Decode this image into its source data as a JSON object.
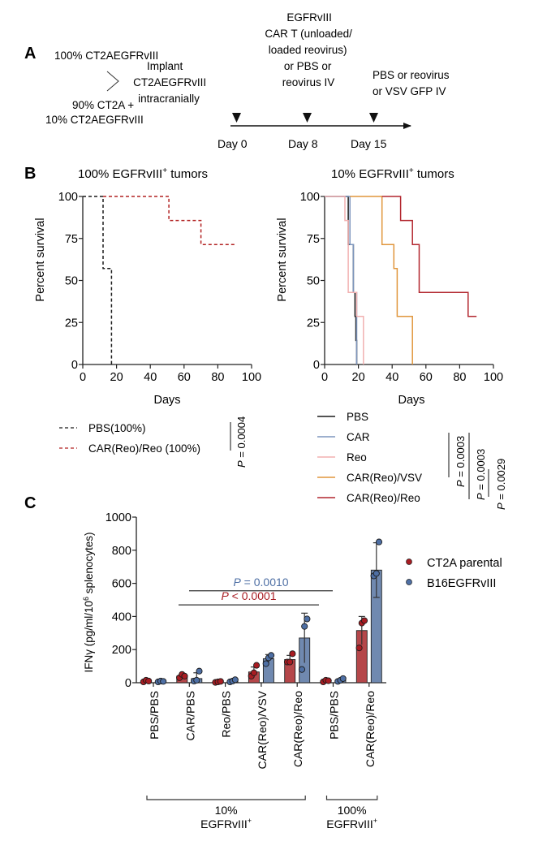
{
  "panel_labels": {
    "a": "A",
    "b": "B",
    "c": "C"
  },
  "panel_a": {
    "groups": [
      "100% CT2AEGFRvIII",
      "90% CT2A +",
      "10% CT2AEGFRvIII"
    ],
    "implant_lines": [
      "Implant",
      "CT2AEGFRvIII",
      "intracranially"
    ],
    "day8_lines": [
      "EGFRvIII",
      "CAR T (unloaded/",
      "loaded reovirus)",
      "or PBS or",
      "reovirus IV"
    ],
    "day15_lines": [
      "PBS or reovirus",
      "or VSV GFP IV"
    ],
    "timepoints": [
      "Day 0",
      "Day 8",
      "Day 15"
    ]
  },
  "chart_data": [
    {
      "type": "line",
      "subtype": "kaplan-meier",
      "title": "100% EGFRvIII+ tumors",
      "title_main": "100% EGFRvIII",
      "title_sup": "+",
      "title_tail": " tumors",
      "xlabel": "Days",
      "ylabel": "Percent survival",
      "xlim": [
        0,
        100
      ],
      "ylim": [
        0,
        100
      ],
      "xticks": [
        "0",
        "20",
        "40",
        "60",
        "80",
        "100"
      ],
      "yticks": [
        "0",
        "25",
        "50",
        "75",
        "100"
      ],
      "grid": false,
      "legend_position": "bottom",
      "series": [
        {
          "name": "PBS(100%)",
          "color": "#1a1a1a",
          "dash": true,
          "steps": [
            [
              0,
              100
            ],
            [
              12,
              100
            ],
            [
              12,
              57.1
            ],
            [
              17,
              57.1
            ],
            [
              17,
              0
            ]
          ]
        },
        {
          "name": "CAR(Reo)/Reo (100%)",
          "color": "#b22222",
          "dash": true,
          "steps": [
            [
              12,
              100
            ],
            [
              51,
              100
            ],
            [
              51,
              85.7
            ],
            [
              70,
              85.7
            ],
            [
              70,
              71.4
            ],
            [
              90,
              71.4
            ]
          ]
        }
      ],
      "stats": [
        {
          "label": "P = 0.0004",
          "p_prefix": "P",
          "p_value": " = 0.0004"
        }
      ]
    },
    {
      "type": "line",
      "subtype": "kaplan-meier",
      "title": "10% EGFRvIII+ tumors",
      "title_main": "10% EGFRvIII",
      "title_sup": "+",
      "title_tail": " tumors",
      "xlabel": "Days",
      "ylabel": "Percent survival",
      "xlim": [
        0,
        100
      ],
      "ylim": [
        0,
        100
      ],
      "xticks": [
        "0",
        "20",
        "40",
        "60",
        "80",
        "100"
      ],
      "yticks": [
        "0",
        "25",
        "50",
        "75",
        "100"
      ],
      "grid": false,
      "legend_position": "bottom",
      "series": [
        {
          "name": "PBS",
          "color": "#1a1a1a",
          "steps": [
            [
              0,
              100
            ],
            [
              14,
              100
            ],
            [
              14,
              71.4
            ],
            [
              17,
              71.4
            ],
            [
              17,
              42.9
            ],
            [
              18,
              42.9
            ],
            [
              18,
              28.6
            ],
            [
              18.5,
              28.6
            ],
            [
              18.5,
              14.3
            ],
            [
              19,
              14.3
            ],
            [
              19,
              0
            ]
          ]
        },
        {
          "name": "CAR",
          "color": "#7d95bd",
          "steps": [
            [
              0,
              100
            ],
            [
              15,
              100
            ],
            [
              15,
              71.4
            ],
            [
              17,
              71.4
            ],
            [
              17,
              42.9
            ],
            [
              19,
              42.9
            ],
            [
              19,
              0
            ]
          ]
        },
        {
          "name": "Reo",
          "color": "#f2b0b0",
          "steps": [
            [
              0,
              100
            ],
            [
              12,
              100
            ],
            [
              12,
              85.7
            ],
            [
              14,
              85.7
            ],
            [
              14,
              42.9
            ],
            [
              19,
              42.9
            ],
            [
              19,
              28.6
            ],
            [
              23,
              28.6
            ],
            [
              23,
              0
            ]
          ]
        },
        {
          "name": "CAR(Reo)/VSV",
          "color": "#e0963c",
          "steps": [
            [
              15,
              100
            ],
            [
              34,
              100
            ],
            [
              34,
              71.4
            ],
            [
              41,
              71.4
            ],
            [
              41,
              57.1
            ],
            [
              43,
              57.1
            ],
            [
              43,
              28.6
            ],
            [
              52,
              28.6
            ],
            [
              52,
              0
            ]
          ]
        },
        {
          "name": "CAR(Reo)/Reo",
          "color": "#b2262e",
          "steps": [
            [
              34,
              100
            ],
            [
              45,
              100
            ],
            [
              45,
              85.7
            ],
            [
              52,
              85.7
            ],
            [
              52,
              71.4
            ],
            [
              56,
              71.4
            ],
            [
              56,
              42.9
            ],
            [
              85,
              42.9
            ],
            [
              85,
              28.6
            ],
            [
              90,
              28.6
            ]
          ]
        }
      ],
      "stats": [
        {
          "label": "P = 0.0003",
          "p_prefix": "P",
          "p_value": " = 0.0003"
        },
        {
          "label": "P = 0.0003",
          "p_prefix": "P",
          "p_value": " = 0.0003"
        },
        {
          "label": "P = 0.0029",
          "p_prefix": "P",
          "p_value": " = 0.0029"
        }
      ]
    },
    {
      "type": "bar",
      "title": "",
      "ylabel": "IFNγ (pg/ml/10^6 splenocytes)",
      "ylabel_parts": {
        "pre": "IFNγ (pg/ml/10",
        "sup": "6",
        "post": " splenocytes)"
      },
      "ylim": [
        0,
        1000
      ],
      "yticks": [
        "0",
        "200",
        "400",
        "600",
        "800",
        "1000"
      ],
      "grid": false,
      "legend_position": "right",
      "categories": [
        "PBS/PBS",
        "CAR/PBS",
        "Reo/PBS",
        "CAR(Reo)/VSV",
        "CAR(Reo)/Reo",
        "PBS/PBS",
        "CAR(Reo)/Reo"
      ],
      "category_groups": [
        {
          "label_line1": "10%",
          "label_line2": "EGFRvIII",
          "sup": "+",
          "from": 0,
          "to": 4
        },
        {
          "label_line1": "100%",
          "label_line2": "EGFRvIII",
          "sup": "+",
          "from": 5,
          "to": 6
        }
      ],
      "series": [
        {
          "name": "CT2A parental",
          "color": "#b5474a",
          "point_color": "#a81c22",
          "values": [
            12,
            40,
            5,
            65,
            140,
            12,
            315
          ],
          "errors": [
            0,
            0,
            0,
            30,
            25,
            0,
            85
          ],
          "points": [
            [
              5,
              15,
              10
            ],
            [
              30,
              50,
              40
            ],
            [
              2,
              5,
              8
            ],
            [
              40,
              60,
              105
            ],
            [
              125,
              125,
              175
            ],
            [
              5,
              15,
              12
            ],
            [
              210,
              360,
              375
            ]
          ]
        },
        {
          "name": "B16EGFRvIII",
          "color": "#7089b0",
          "point_color": "#4e6fa4",
          "values": [
            8,
            25,
            10,
            145,
            270,
            15,
            680
          ],
          "errors": [
            0,
            35,
            0,
            25,
            150,
            0,
            165
          ],
          "points": [
            [
              5,
              10,
              8
            ],
            [
              10,
              15,
              70
            ],
            [
              5,
              10,
              18
            ],
            [
              115,
              150,
              165
            ],
            [
              80,
              340,
              385
            ],
            [
              8,
              15,
              25
            ],
            [
              645,
              660,
              850
            ]
          ]
        }
      ],
      "comparisons": [
        {
          "p_prefix": "P",
          "p_value": " = 0.0010",
          "color": "#4e6fa4",
          "from": 1,
          "to": 4
        },
        {
          "p_prefix": "P",
          "p_value": " < 0.0001",
          "color": "#a81c22",
          "from": 1,
          "to": 4
        }
      ]
    }
  ]
}
